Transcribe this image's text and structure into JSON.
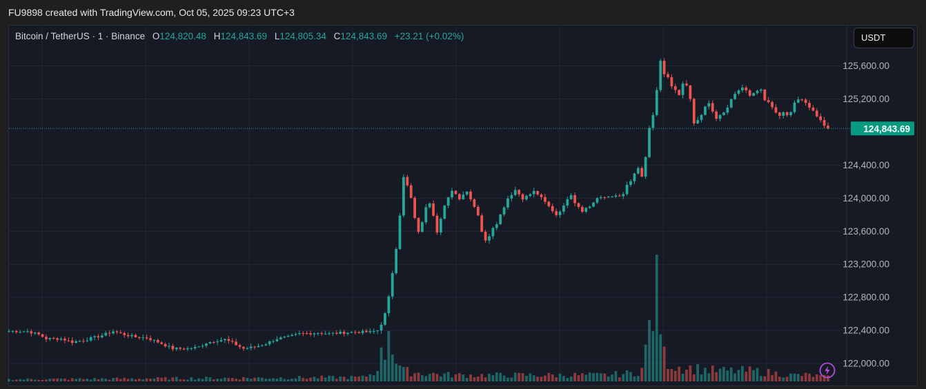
{
  "header": {
    "caption": "FU9898 created with TradingView.com, Oct 05, 2025 09:23 UTC+3"
  },
  "legend": {
    "symbol": "Bitcoin / TetherUS · 1 · Binance",
    "open_label": "O",
    "open": "124,820.48",
    "high_label": "H",
    "high": "124,843.69",
    "low_label": "L",
    "low": "124,805.34",
    "close_label": "C",
    "close": "124,843.69",
    "change": "+23.21 (+0.02%)"
  },
  "currency_button": "USDT",
  "last_price_label": "124,843.69",
  "colors": {
    "up": "#26a69a",
    "down": "#ef5350",
    "background": "#161a25",
    "grid": "#232734",
    "axis_text": "#b2b5be",
    "alert": "#b44bd8"
  },
  "icons": [
    "lightning-bolt-icon"
  ],
  "chart_data": {
    "type": "candlestick",
    "symbol": "Bitcoin / TetherUS",
    "interval": "1",
    "exchange": "Binance",
    "currency": "USDT",
    "ylim": [
      121800,
      125900
    ],
    "y_ticks": [
      122000,
      122400,
      122800,
      123200,
      123600,
      124000,
      124400,
      125200,
      125600
    ],
    "y_tick_labels": [
      "122,000.00",
      "122,400.00",
      "122,800.00",
      "123,200.00",
      "123,600.00",
      "124,000.00",
      "124,400.00",
      "125,200.00",
      "125,600.00"
    ],
    "last_price": 124843.69,
    "grid": true,
    "close_path": [
      [
        0,
        122390
      ],
      [
        5,
        122390
      ],
      [
        8,
        122350
      ],
      [
        10,
        122300
      ],
      [
        14,
        122300
      ],
      [
        17,
        122260
      ],
      [
        20,
        122280
      ],
      [
        25,
        122340
      ],
      [
        28,
        122390
      ],
      [
        31,
        122350
      ],
      [
        34,
        122320
      ],
      [
        37,
        122310
      ],
      [
        40,
        122260
      ],
      [
        44,
        122180
      ],
      [
        48,
        122180
      ],
      [
        51,
        122200
      ],
      [
        53,
        122250
      ],
      [
        56,
        122280
      ],
      [
        58,
        122290
      ],
      [
        60,
        122250
      ],
      [
        63,
        122180
      ],
      [
        66,
        122200
      ],
      [
        69,
        122240
      ],
      [
        72,
        122300
      ],
      [
        75,
        122320
      ],
      [
        78,
        122360
      ],
      [
        83,
        122370
      ],
      [
        86,
        122360
      ],
      [
        89,
        122370
      ],
      [
        93,
        122380
      ],
      [
        97,
        122380
      ],
      [
        99,
        122400
      ],
      [
        100,
        122480
      ],
      [
        101,
        122600
      ],
      [
        102,
        122800
      ],
      [
        103,
        123100
      ],
      [
        104,
        123400
      ],
      [
        105,
        123800
      ],
      [
        106,
        124250
      ],
      [
        107,
        124150
      ],
      [
        108,
        124000
      ],
      [
        109,
        123750
      ],
      [
        110,
        123600
      ],
      [
        111,
        123700
      ],
      [
        112,
        123900
      ],
      [
        113,
        123950
      ],
      [
        114,
        123800
      ],
      [
        115,
        123600
      ],
      [
        116,
        123750
      ],
      [
        117,
        123900
      ],
      [
        118,
        124000
      ],
      [
        119,
        124100
      ],
      [
        120,
        124050
      ],
      [
        121,
        124000
      ],
      [
        122,
        124050
      ],
      [
        123,
        124080
      ],
      [
        124,
        124000
      ],
      [
        125,
        123900
      ],
      [
        126,
        123800
      ],
      [
        127,
        123600
      ],
      [
        128,
        123480
      ],
      [
        129,
        123550
      ],
      [
        130,
        123650
      ],
      [
        131,
        123700
      ],
      [
        132,
        123800
      ],
      [
        133,
        123900
      ],
      [
        134,
        124000
      ],
      [
        135,
        124050
      ],
      [
        136,
        124100
      ],
      [
        137,
        124050
      ],
      [
        138,
        124000
      ],
      [
        139,
        124020
      ],
      [
        140,
        124050
      ],
      [
        141,
        124080
      ],
      [
        142,
        124050
      ],
      [
        143,
        124000
      ],
      [
        144,
        123950
      ],
      [
        145,
        123900
      ],
      [
        146,
        123850
      ],
      [
        147,
        123800
      ],
      [
        148,
        123850
      ],
      [
        149,
        123900
      ],
      [
        150,
        124000
      ],
      [
        151,
        124050
      ],
      [
        152,
        123950
      ],
      [
        153,
        123900
      ],
      [
        154,
        123850
      ],
      [
        155,
        123880
      ],
      [
        156,
        123900
      ],
      [
        157,
        123950
      ],
      [
        158,
        124000
      ],
      [
        159,
        124000
      ],
      [
        160,
        124010
      ],
      [
        161,
        124020
      ],
      [
        162,
        124030
      ],
      [
        163,
        124020
      ],
      [
        164,
        124020
      ],
      [
        165,
        124050
      ],
      [
        166,
        124150
      ],
      [
        167,
        124200
      ],
      [
        168,
        124300
      ],
      [
        169,
        124350
      ],
      [
        170,
        124250
      ],
      [
        171,
        124500
      ],
      [
        172,
        124850
      ],
      [
        173,
        125000
      ],
      [
        174,
        125300
      ],
      [
        175,
        125650
      ],
      [
        176,
        125500
      ],
      [
        177,
        125450
      ],
      [
        178,
        125350
      ],
      [
        179,
        125300
      ],
      [
        180,
        125250
      ],
      [
        181,
        125400
      ],
      [
        182,
        125350
      ],
      [
        183,
        125200
      ],
      [
        184,
        124900
      ],
      [
        185,
        124950
      ],
      [
        186,
        125000
      ],
      [
        187,
        125100
      ],
      [
        188,
        125150
      ],
      [
        189,
        125050
      ],
      [
        190,
        124950
      ],
      [
        191,
        125000
      ],
      [
        192,
        125050
      ],
      [
        193,
        125100
      ],
      [
        194,
        125200
      ],
      [
        195,
        125250
      ],
      [
        196,
        125300
      ],
      [
        197,
        125350
      ],
      [
        198,
        125300
      ],
      [
        199,
        125250
      ],
      [
        200,
        125280
      ],
      [
        201,
        125300
      ],
      [
        202,
        125320
      ],
      [
        203,
        125200
      ],
      [
        204,
        125150
      ],
      [
        205,
        125100
      ],
      [
        206,
        125050
      ],
      [
        207,
        125000
      ],
      [
        208,
        125050
      ],
      [
        209,
        125000
      ],
      [
        210,
        125050
      ],
      [
        211,
        125150
      ],
      [
        212,
        125200
      ],
      [
        213,
        125180
      ],
      [
        214,
        125150
      ],
      [
        215,
        125100
      ],
      [
        216,
        125050
      ],
      [
        217,
        125000
      ],
      [
        218,
        124950
      ],
      [
        219,
        124880
      ],
      [
        220,
        124844
      ]
    ],
    "volume_profile": [
      [
        0,
        1
      ],
      [
        95,
        2
      ],
      [
        98,
        4
      ],
      [
        100,
        12
      ],
      [
        101,
        14
      ],
      [
        102,
        28
      ],
      [
        103,
        18
      ],
      [
        104,
        10
      ],
      [
        106,
        5
      ],
      [
        110,
        4
      ],
      [
        120,
        3
      ],
      [
        130,
        3
      ],
      [
        140,
        3
      ],
      [
        150,
        3
      ],
      [
        160,
        3
      ],
      [
        168,
        4
      ],
      [
        170,
        6
      ],
      [
        171,
        14
      ],
      [
        172,
        26
      ],
      [
        173,
        34
      ],
      [
        174,
        42
      ],
      [
        175,
        30
      ],
      [
        176,
        12
      ],
      [
        178,
        8
      ],
      [
        180,
        7
      ],
      [
        185,
        6
      ],
      [
        190,
        5
      ],
      [
        195,
        5
      ],
      [
        200,
        5
      ],
      [
        205,
        4
      ],
      [
        210,
        3
      ],
      [
        215,
        3
      ],
      [
        220,
        2
      ]
    ]
  }
}
